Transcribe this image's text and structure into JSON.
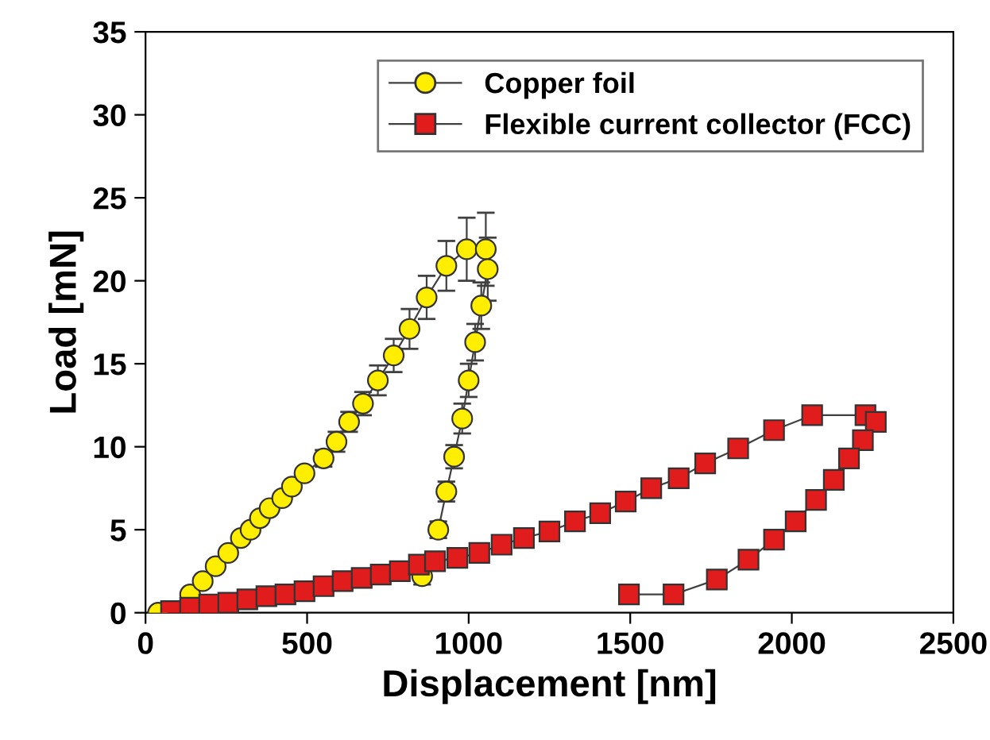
{
  "chart_data": {
    "type": "line",
    "xlabel": "Displacement [nm]",
    "ylabel": "Load [mN]",
    "xlim": [
      0,
      2500
    ],
    "xticks": [
      0,
      500,
      1000,
      1500,
      2000,
      2500
    ],
    "ylim": [
      0,
      35
    ],
    "yticks": [
      0,
      5,
      10,
      15,
      20,
      25,
      30,
      35
    ],
    "grid": false,
    "legend": "top right",
    "series": [
      {
        "name": "Copper foil",
        "color": "#ffee00",
        "marker": "circle",
        "x": [
          39,
          59,
          98,
          138,
          177,
          217,
          256,
          295,
          325,
          354,
          384,
          423,
          453,
          492,
          551,
          591,
          630,
          673,
          719,
          768,
          817,
          870,
          931,
          994,
          1053,
          1059,
          1039,
          1020,
          1000,
          980,
          955,
          931,
          906,
          886,
          856
        ],
        "values": [
          0,
          null,
          null,
          1.1,
          1.9,
          2.8,
          3.6,
          4.5,
          5.0,
          5.7,
          6.3,
          6.9,
          7.6,
          8.4,
          9.3,
          10.3,
          11.5,
          12.6,
          14.0,
          15.5,
          17.1,
          19.0,
          20.9,
          21.9,
          21.9,
          20.7,
          18.5,
          16.3,
          14.0,
          11.7,
          9.4,
          7.3,
          5.0,
          null,
          2.2
        ],
        "errors": [
          null,
          null,
          null,
          null,
          null,
          null,
          null,
          null,
          null,
          null,
          null,
          null,
          null,
          null,
          0.5,
          0.6,
          0.6,
          0.7,
          0.9,
          1.0,
          1.2,
          1.3,
          1.5,
          1.9,
          2.2,
          1.9,
          1.4,
          1.1,
          1.0,
          0.9,
          0.7,
          0.6,
          0.5,
          null,
          0.5
        ]
      },
      {
        "name": "Flexible current collector (FCC)",
        "color": "#e01c1c",
        "marker": "square",
        "x": [
          79,
          138,
          197,
          256,
          315,
          374,
          433,
          492,
          551,
          610,
          669,
          728,
          787,
          846,
          896,
          965,
          1033,
          1102,
          1171,
          1250,
          1329,
          1407,
          1486,
          1565,
          1650,
          1732,
          1834,
          1945,
          2063,
          2228,
          2260,
          2220,
          2177,
          2130,
          2075,
          2012,
          1945,
          1866,
          1768,
          1634,
          1496
        ],
        "values": [
          0.1,
          0.3,
          0.5,
          0.6,
          0.8,
          1.0,
          1.1,
          1.3,
          1.6,
          1.9,
          2.1,
          2.3,
          2.5,
          2.9,
          3.1,
          3.3,
          3.6,
          4.1,
          4.5,
          4.9,
          5.5,
          6.0,
          6.7,
          7.5,
          8.1,
          9.0,
          9.9,
          11.0,
          11.9,
          11.9,
          11.5,
          10.4,
          9.3,
          8.0,
          6.8,
          5.5,
          4.4,
          3.2,
          2.0,
          1.1,
          1.1
        ]
      }
    ]
  }
}
